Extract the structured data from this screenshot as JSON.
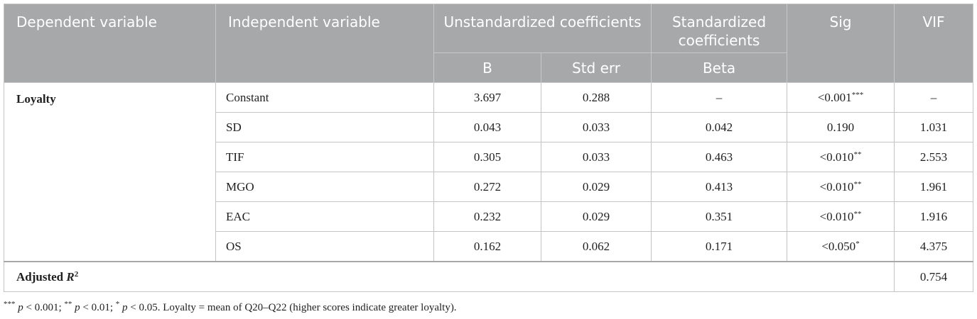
{
  "header": {
    "dependent_variable": "Dependent variable",
    "independent_variable": "Independent variable",
    "unstandardized_coefficients": "Unstandardized coefficients",
    "standardized_coefficients": "Standardized coefficients",
    "sig": "Sig",
    "vif": "VIF",
    "b": "B",
    "std_err": "Std err",
    "beta": "Beta"
  },
  "dependent": "Loyalty",
  "rows": [
    {
      "iv": "Constant",
      "b": "3.697",
      "se": "0.288",
      "beta": "–",
      "sig": "<0.001",
      "stars": "***",
      "vif": "–"
    },
    {
      "iv": "SD",
      "b": "0.043",
      "se": "0.033",
      "beta": "0.042",
      "sig": "0.190",
      "stars": "",
      "vif": "1.031"
    },
    {
      "iv": "TIF",
      "b": "0.305",
      "se": "0.033",
      "beta": "0.463",
      "sig": "<0.010",
      "stars": "**",
      "vif": "2.553"
    },
    {
      "iv": "MGO",
      "b": "0.272",
      "se": "0.029",
      "beta": "0.413",
      "sig": "<0.010",
      "stars": "**",
      "vif": "1.961"
    },
    {
      "iv": "EAC",
      "b": "0.232",
      "se": "0.029",
      "beta": "0.351",
      "sig": "<0.010",
      "stars": "**",
      "vif": "1.916"
    },
    {
      "iv": "OS",
      "b": "0.162",
      "se": "0.062",
      "beta": "0.171",
      "sig": "<0.050",
      "stars": "*",
      "vif": "4.375"
    }
  ],
  "adjusted": {
    "label": "Adjusted ",
    "r": "R",
    "exp": "2",
    "value": "0.754"
  },
  "footnote": {
    "s1": "***",
    "p1": "p",
    "t1": " < 0.001; ",
    "s2": "**",
    "p2": "p",
    "t2": " < 0.01; ",
    "s3": "*",
    "p3": "p",
    "t3": " < 0.05. Loyalty = mean of Q20–Q22 (higher scores indicate greater loyalty)."
  }
}
